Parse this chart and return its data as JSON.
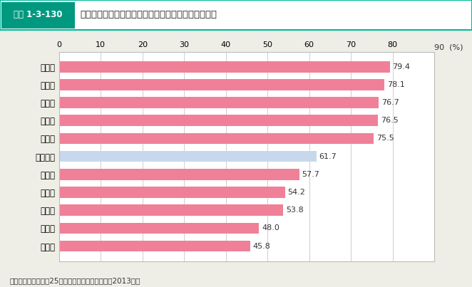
{
  "title": "都道府県別の持ち家住宅率（上位・下位５都道府県）",
  "title_prefix": "図表 1-3-130",
  "categories": [
    "富山県",
    "秋田県",
    "山形県",
    "福井県",
    "新潟県",
    "全国平均",
    "北海道",
    "大阪府",
    "福岡県",
    "沖縄県",
    "東京都"
  ],
  "values": [
    79.4,
    78.1,
    76.7,
    76.5,
    75.5,
    61.7,
    57.7,
    54.2,
    53.8,
    48.0,
    45.8
  ],
  "bar_colors": [
    "#F08098",
    "#F08098",
    "#F08098",
    "#F08098",
    "#F08098",
    "#C8D8EC",
    "#F08098",
    "#F08098",
    "#F08098",
    "#F08098",
    "#F08098"
  ],
  "xlim": [
    0,
    90
  ],
  "xticks": [
    0,
    10,
    20,
    30,
    40,
    50,
    60,
    70,
    80,
    90
  ],
  "grid_color": "#BBBBBB",
  "background_color": "#EEEEE6",
  "plot_bg_color": "#FFFFFF",
  "caption": "資料：総務省「平成25年住宅・土地統計調査」（2013年）",
  "header_teal": "#009980",
  "header_border": "#00BB99"
}
